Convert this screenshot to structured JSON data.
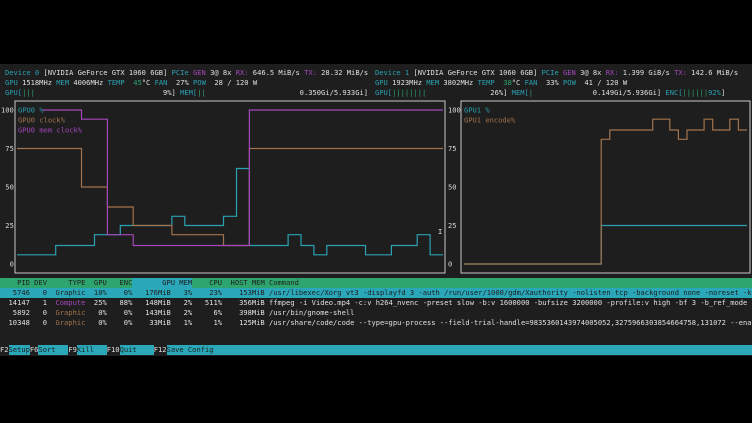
{
  "colors": {
    "cyan": "#2aa1b3",
    "purple": "#a347ba",
    "green": "#2fa56f",
    "brown": "#a2734c",
    "header_bg": "#2ea56e",
    "selected_bg": "#2aa7b8"
  },
  "labels": {
    "pcie": "PCIe",
    "gen": "GEN",
    "rx": "RX:",
    "tx": "TX:",
    "gpu": "GPU",
    "mem": "MEM",
    "temp": "TEMP",
    "deg": "°C",
    "fan": "FAN",
    "pow": "POW",
    "gpu_bar": "GPU[",
    "mem_bar": "MEM[",
    "enc_bar": "ENC[",
    "close": "]"
  },
  "devices": [
    {
      "name": "Device 0",
      "model": "[NVIDIA GeForce GTX 1060 6GB]",
      "gen": "3@ 8x",
      "rx": "646.5 MiB/s",
      "tx": "28.32 MiB/s",
      "gpu_clock": "1518MHz",
      "mem_clock": "4006MHz",
      "temp": "45",
      "fan": "27%",
      "pow": "28 / 120 W",
      "gpu_pipes": "|||",
      "gpu_util": "9%",
      "mem_pipes": "||",
      "mem_usage": "0.350Gi/5.933Gi"
    },
    {
      "name": "Device 1",
      "model": "[NVIDIA GeForce GTX 1060 6GB]",
      "gen": "3@ 8x",
      "rx": "1.399 GiB/s",
      "tx": "142.6 MiB/s",
      "gpu_clock": "1923MHz",
      "mem_clock": "3802MHz",
      "temp": "38",
      "fan": "33%",
      "pow": "41 / 120 W",
      "gpu_pipes": "||||||||",
      "gpu_util": "26%",
      "mem_pipes": "|",
      "mem_usage": "0.149Gi/5.936Gi",
      "enc_pipes": "||||||",
      "enc_util": "92%"
    }
  ],
  "chart_data": [
    {
      "type": "line",
      "step": true,
      "ylim": [
        0,
        100
      ],
      "yticks": [
        "100",
        "75",
        "50",
        "25",
        "0"
      ],
      "series": [
        {
          "name": "GPU0 %",
          "color": "#2aa1b3",
          "values": [
            6,
            6,
            6,
            12,
            12,
            12,
            19,
            19,
            25,
            25,
            25,
            25,
            31,
            25,
            25,
            25,
            31,
            62,
            12,
            12,
            12,
            19,
            12,
            6,
            12,
            12,
            12,
            6,
            6,
            12,
            12,
            19,
            6
          ]
        },
        {
          "name": "GPU0 clock%",
          "color": "#a2734c",
          "values": [
            75,
            75,
            75,
            75,
            75,
            50,
            50,
            37,
            37,
            25,
            25,
            25,
            19,
            19,
            19,
            19,
            12,
            12,
            75,
            75,
            75,
            75,
            75,
            75,
            75,
            75,
            75,
            75,
            75,
            75,
            75,
            75,
            75
          ]
        },
        {
          "name": "GPU0 mem clock%",
          "color": "#a347ba",
          "values": [
            null,
            null,
            100,
            100,
            100,
            94,
            94,
            19,
            19,
            12,
            12,
            12,
            12,
            12,
            12,
            12,
            12,
            12,
            100,
            100,
            100,
            100,
            100,
            100,
            100,
            100,
            100,
            100,
            100,
            100,
            100,
            100,
            100
          ]
        }
      ]
    },
    {
      "type": "line",
      "step": true,
      "ylim": [
        0,
        100
      ],
      "yticks": [
        "100",
        "75",
        "50",
        "25",
        "0"
      ],
      "series": [
        {
          "name": "GPU1 %",
          "color": "#2aa1b3",
          "values": [
            0,
            0,
            0,
            0,
            0,
            0,
            0,
            0,
            0,
            0,
            0,
            0,
            0,
            0,
            0,
            0,
            25,
            25,
            25,
            25,
            25,
            25,
            25,
            25,
            25,
            25,
            25,
            25,
            25,
            25,
            25,
            25,
            25
          ]
        },
        {
          "name": "GPU1 encode%",
          "color": "#a2734c",
          "values": [
            0,
            0,
            0,
            0,
            0,
            0,
            0,
            0,
            0,
            0,
            0,
            0,
            0,
            0,
            0,
            0,
            81,
            87,
            87,
            87,
            87,
            87,
            94,
            94,
            87,
            81,
            87,
            87,
            94,
            87,
            87,
            94,
            87
          ]
        }
      ]
    }
  ],
  "table": {
    "headers": [
      "PID",
      "DEV",
      "TYPE",
      "GPU",
      "ENC",
      "GPU MEM",
      "CPU",
      "HOST MEM",
      "Command"
    ],
    "rows": [
      {
        "pid": "5746",
        "dev": "0",
        "type": "Graphic",
        "gpu": "10%",
        "enc": "0%",
        "gmem": "176MiB",
        "gmem_pct": "3%",
        "cpu": "23%",
        "hmem": "153MiB",
        "cmd": "/usr/libexec/Xorg vt3 -displayfd 3 -auth /run/user/1000/gdm/Xauthority -nolisten tcp -background none -noreset -k"
      },
      {
        "pid": "14147",
        "dev": "1",
        "type": "Compute",
        "gpu": "25%",
        "enc": "88%",
        "gmem": "148MiB",
        "gmem_pct": "2%",
        "cpu": "511%",
        "hmem": "356MiB",
        "cmd": "ffmpeg -i Video.mp4 -c:v h264_nvenc -preset slow -b:v 1600000 -bufsize 3200000 -profile:v high -bf 3 -b_ref_mode"
      },
      {
        "pid": "5892",
        "dev": "0",
        "type": "Graphic",
        "gpu": "0%",
        "enc": "0%",
        "gmem": "143MiB",
        "gmem_pct": "2%",
        "cpu": "6%",
        "hmem": "398MiB",
        "cmd": "/usr/bin/gnome-shell"
      },
      {
        "pid": "10348",
        "dev": "0",
        "type": "Graphic",
        "gpu": "0%",
        "enc": "0%",
        "gmem": "33MiB",
        "gmem_pct": "1%",
        "cpu": "1%",
        "hmem": "125MiB",
        "cmd": "/usr/share/code/code --type=gpu-process --field-trial-handle=9835360143974005052,3275966303854664758,131072 --ena"
      }
    ]
  },
  "footer": [
    {
      "key": "F2",
      "label": "Setup"
    },
    {
      "key": "F6",
      "label": "Sort"
    },
    {
      "key": "F9",
      "label": "Kill"
    },
    {
      "key": "F10",
      "label": "Quit"
    },
    {
      "key": "F12",
      "label": "Save Config"
    }
  ]
}
